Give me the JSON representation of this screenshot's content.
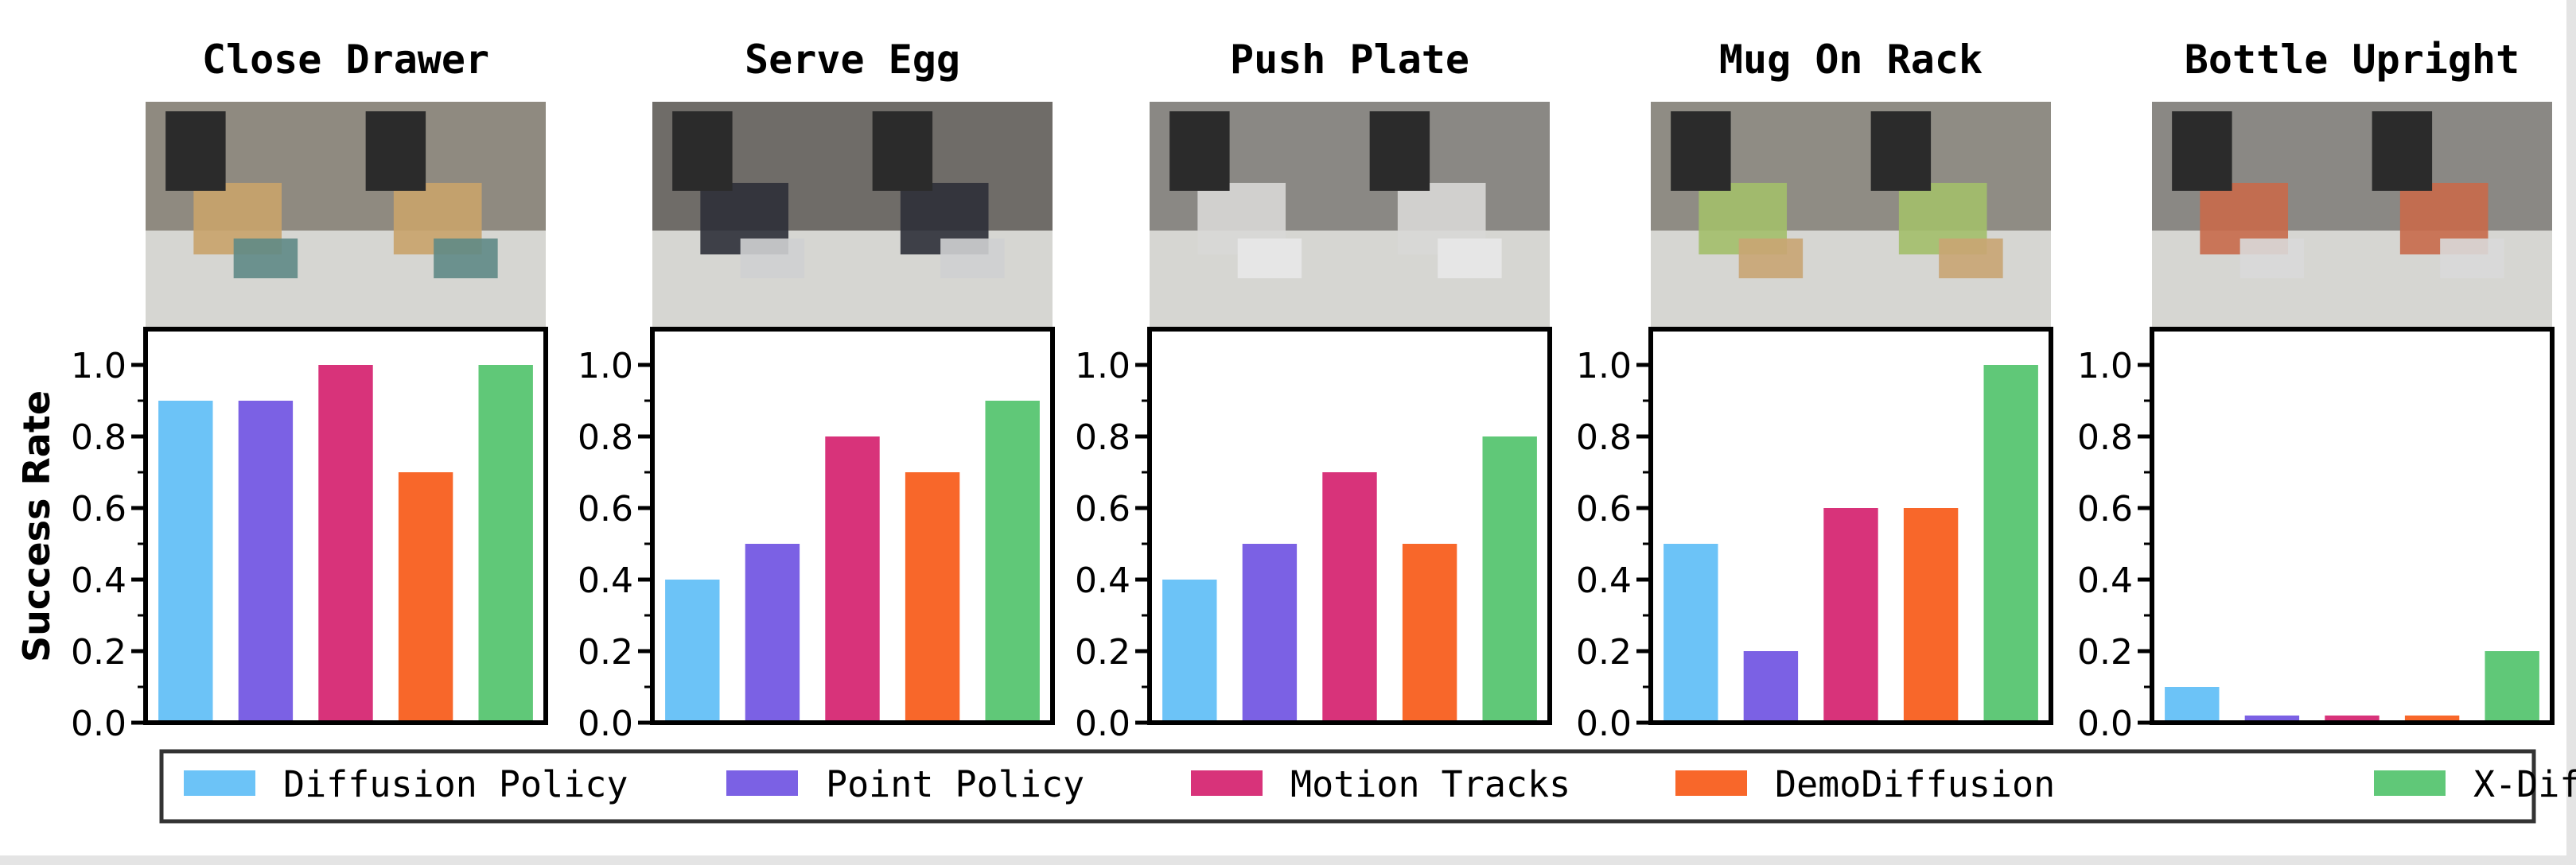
{
  "chart_data": [
    {
      "type": "bar",
      "title": "Close Drawer",
      "ylabel": "Success Rate",
      "ylim": [
        0,
        1.1
      ],
      "yticks": [
        "0.0",
        "0.2",
        "0.4",
        "0.6",
        "0.8",
        "1.0"
      ],
      "values": [
        0.9,
        0.9,
        1.0,
        0.7,
        1.0
      ]
    },
    {
      "type": "bar",
      "title": "Serve Egg",
      "ylim": [
        0,
        1.1
      ],
      "yticks": [
        "0.0",
        "0.2",
        "0.4",
        "0.6",
        "0.8",
        "1.0"
      ],
      "values": [
        0.4,
        0.5,
        0.8,
        0.7,
        0.9
      ]
    },
    {
      "type": "bar",
      "title": "Push Plate",
      "ylim": [
        0,
        1.1
      ],
      "yticks": [
        "0.0",
        "0.2",
        "0.4",
        "0.6",
        "0.8",
        "1.0"
      ],
      "values": [
        0.4,
        0.5,
        0.7,
        0.5,
        0.8
      ]
    },
    {
      "type": "bar",
      "title": "Mug On Rack",
      "ylim": [
        0,
        1.1
      ],
      "yticks": [
        "0.0",
        "0.2",
        "0.4",
        "0.6",
        "0.8",
        "1.0"
      ],
      "values": [
        0.5,
        0.2,
        0.6,
        0.6,
        1.0
      ]
    },
    {
      "type": "bar",
      "title": "Bottle Upright",
      "ylim": [
        0,
        1.1
      ],
      "yticks": [
        "0.0",
        "0.2",
        "0.4",
        "0.6",
        "0.8",
        "1.0"
      ],
      "values": [
        0.1,
        0.02,
        0.02,
        0.02,
        0.2
      ]
    }
  ],
  "legend": {
    "placement": "bottom",
    "series": [
      {
        "name": "Diffusion Policy",
        "color": "#6cc3f7"
      },
      {
        "name": "Point Policy",
        "color": "#7b61e4"
      },
      {
        "name": "Motion Tracks",
        "color": "#d8337a"
      },
      {
        "name": "DemoDiffusion",
        "color": "#f8672a"
      },
      {
        "name": "X-Diffusion",
        "color": "#60c878"
      }
    ]
  }
}
